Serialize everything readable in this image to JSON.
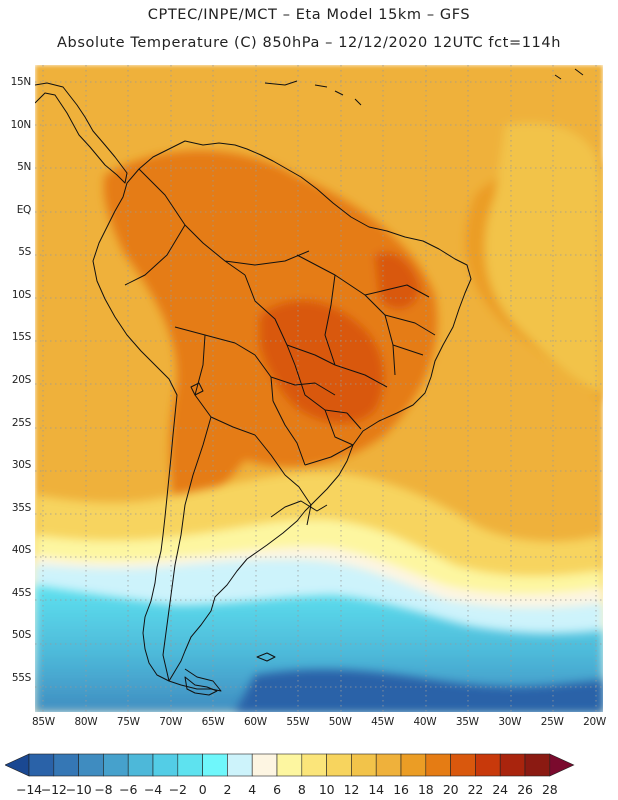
{
  "title_line1": "CPTEC/INPE/MCT –  Eta Model 15km – GFS",
  "title_line2": "Absolute Temperature (C) 850hPa – 12/12/2020 12UTC fct=114h",
  "map": {
    "region": "South America",
    "lon_range": [
      -86,
      -19
    ],
    "lat_range": [
      -59,
      17
    ],
    "latitude_labels": [
      "15N",
      "10N",
      "5N",
      "EQ",
      "5S",
      "10S",
      "15S",
      "20S",
      "25S",
      "30S",
      "35S",
      "40S",
      "45S",
      "50S",
      "55S"
    ],
    "latitude_values": [
      15,
      10,
      5,
      0,
      -5,
      -10,
      -15,
      -20,
      -25,
      -30,
      -35,
      -40,
      -45,
      -50,
      -55
    ],
    "longitude_labels": [
      "85W",
      "80W",
      "75W",
      "70W",
      "65W",
      "60W",
      "55W",
      "50W",
      "45W",
      "40W",
      "35W",
      "30W",
      "25W",
      "20W"
    ],
    "longitude_values": [
      -85,
      -80,
      -75,
      -70,
      -65,
      -60,
      -55,
      -50,
      -45,
      -40,
      -35,
      -30,
      -25,
      -20
    ]
  },
  "legend": {
    "labels": [
      "-14",
      "-12",
      "-10",
      "-8",
      "-6",
      "-4",
      "-2",
      "0",
      "2",
      "4",
      "6",
      "8",
      "10",
      "12",
      "14",
      "16",
      "18",
      "20",
      "22",
      "24",
      "26",
      "28"
    ],
    "colors": [
      "#1a4892",
      "#2a62a8",
      "#3577b5",
      "#3f8cc0",
      "#46a1cc",
      "#4db8d9",
      "#53cde6",
      "#5ee2ef",
      "#6ff7fb",
      "#cdf3fb",
      "#fdf5e2",
      "#fdf6a0",
      "#fbe57a",
      "#f7d45e",
      "#f2c34a",
      "#efb13b",
      "#eb9d25",
      "#e57c14",
      "#d9580d",
      "#c8390b",
      "#a9240d",
      "#8b1a12",
      "#7a0a2d"
    ]
  }
}
